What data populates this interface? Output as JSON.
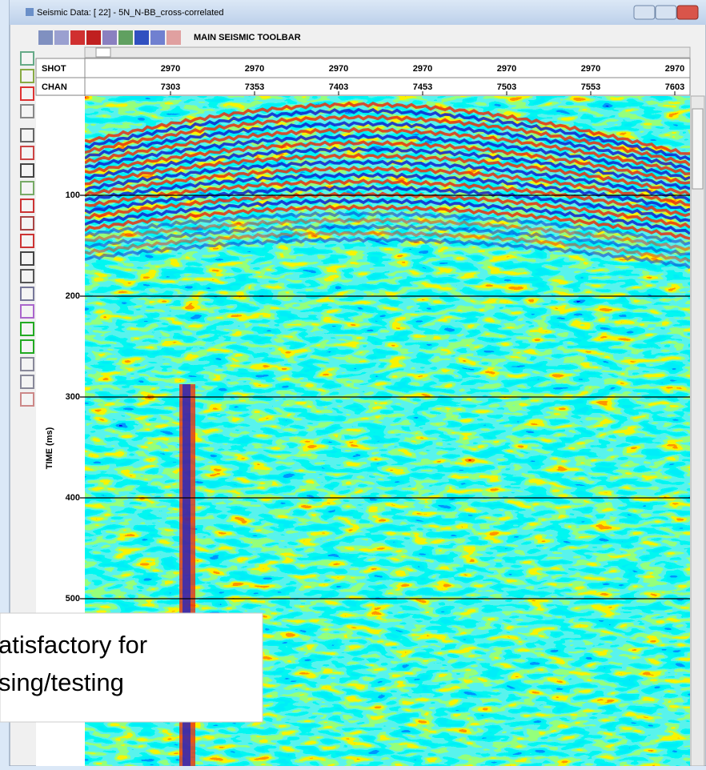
{
  "window": {
    "title": "Seismic Data: [ 22] - 5N_N-BB_cross-correlated"
  },
  "toolbar": {
    "label": "MAIN SEISMIC TOOLBAR"
  },
  "header": {
    "row_labels": [
      "SHOT",
      "CHAN"
    ],
    "columns": [
      {
        "shot": "2970",
        "chan": "7303"
      },
      {
        "shot": "2970",
        "chan": "7353"
      },
      {
        "shot": "2970",
        "chan": "7403"
      },
      {
        "shot": "2970",
        "chan": "7453"
      },
      {
        "shot": "2970",
        "chan": "7503"
      },
      {
        "shot": "2970",
        "chan": "7553"
      },
      {
        "shot": "2970",
        "chan": "7603"
      }
    ]
  },
  "time_axis": {
    "label": "TIME (ms)",
    "ticks": [
      100,
      200,
      300,
      400,
      500
    ]
  },
  "overlay": {
    "lines": [
      "atisfactory for",
      "sing/testing"
    ]
  }
}
